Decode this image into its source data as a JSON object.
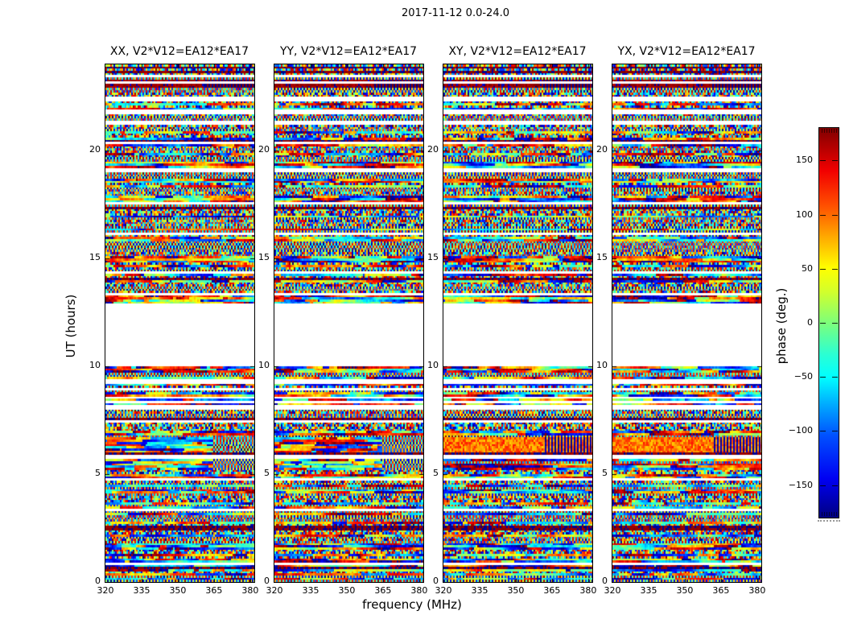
{
  "figure": {
    "title": "2017-11-12 0.0-24.0",
    "xlabel": "frequency (MHz)",
    "ylabel": "UT (hours)"
  },
  "colorbar": {
    "label": "phase (deg.)",
    "ticks": [
      150,
      100,
      50,
      0,
      -50,
      -100,
      -150
    ],
    "range": [
      -180,
      180
    ],
    "colormap": "jet"
  },
  "chart_data": {
    "type": "heatmap",
    "title": "2017-11-12 0.0-24.0",
    "xlabel": "frequency (MHz)",
    "ylabel": "UT (hours)",
    "value_label": "phase (deg.)",
    "value_range": [
      -180,
      180
    ],
    "colormap": "jet",
    "x_range_mhz": [
      320,
      381.7
    ],
    "x_ticks": [
      320,
      335,
      350,
      365,
      380
    ],
    "y_range_ut_hours": [
      0,
      24
    ],
    "y_ticks": [
      0,
      5,
      10,
      15,
      20
    ],
    "panels": [
      {
        "pol": "XX",
        "title": "XX, V2*V12=EA12*EA17"
      },
      {
        "pol": "YY",
        "title": "YY, V2*V12=EA12*EA17"
      },
      {
        "pol": "XY",
        "title": "XY, V2*V12=EA12*EA17"
      },
      {
        "pol": "YX",
        "title": "YX, V2*V12=EA12*EA17"
      }
    ],
    "description": "Baseline EA12*EA17 visibility phase vs frequency and time; phases are noise-like, uniformly distributed over ±180 deg (speckled jet-colormap texture), identical time-gap structure in all four polarization panels.",
    "data_gaps_ut": [
      [
        10.02,
        12.92
      ],
      [
        22.3,
        22.52
      ],
      [
        5.75,
        5.88
      ],
      [
        21.3,
        21.4
      ],
      [
        20.3,
        20.37
      ],
      [
        19.05,
        19.16
      ],
      [
        17.5,
        17.57
      ],
      [
        16.15,
        16.24
      ],
      [
        14.3,
        14.42
      ],
      [
        13.28,
        13.37
      ],
      [
        9.55,
        9.63
      ],
      [
        8.95,
        9.03
      ],
      [
        8.0,
        8.08
      ],
      [
        7.4,
        7.47
      ],
      [
        4.75,
        4.83
      ],
      [
        3.3,
        3.38
      ],
      [
        2.55,
        2.62
      ],
      [
        1.45,
        1.52
      ],
      [
        0.8,
        0.88
      ]
    ],
    "features": [
      {
        "ut": [
          22.95,
          23.28
        ],
        "panels": [
          "XX",
          "YY",
          "XY",
          "YX"
        ],
        "style": "red",
        "note": "dark red/blue interference stripe"
      },
      {
        "ut": [
          6.05,
          6.65
        ],
        "panels": [
          "XY",
          "YX"
        ],
        "style": "orange",
        "note": "orange-dominated phase band, dense dark texture at high frequency"
      },
      {
        "ut": [
          6.05,
          6.65
        ],
        "panels": [
          "XX",
          "YY"
        ],
        "style": "coarse",
        "note": "coherent coarse red/blue ripples"
      },
      {
        "ut": [
          5.93,
          6.02
        ],
        "panels": [
          "XX",
          "YY",
          "XY",
          "YX"
        ],
        "style": "dark",
        "note": "near ±180 deg dark row"
      },
      {
        "ut": [
          5.25,
          5.72
        ],
        "panels": [
          "XX",
          "YY"
        ],
        "style": "coarse",
        "note": "strong coherent red/blue band"
      }
    ]
  }
}
